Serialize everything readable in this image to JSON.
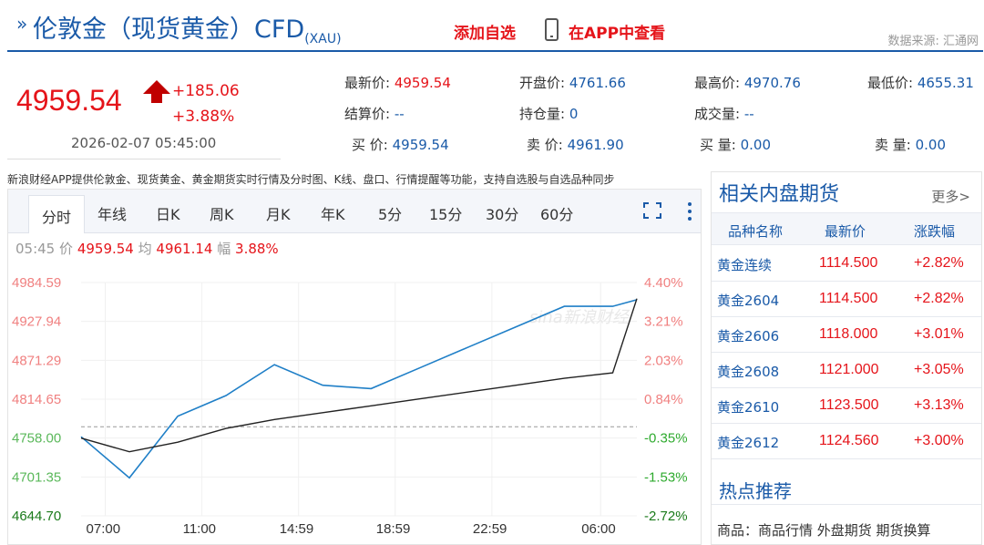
{
  "header": {
    "title": "伦敦金（现货黄金）CFD",
    "title_sub": "(XAU)",
    "add_fav": "添加自选",
    "app_view": "在APP中查看",
    "source": "数据来源: 汇通网"
  },
  "quote": {
    "price": "4959.54",
    "change": "+185.06",
    "change_pct": "+3.88%",
    "time": "2026-02-07 05:45:00",
    "fields": [
      {
        "label": "最新价:",
        "value": "4959.54",
        "red": true
      },
      {
        "label": "开盘价:",
        "value": "4761.66"
      },
      {
        "label": "最高价:",
        "value": "4970.76"
      },
      {
        "label": "最低价:",
        "value": "4655.31"
      },
      {
        "label": "结算价:",
        "value": "--"
      },
      {
        "label": "持仓量:",
        "value": "0"
      },
      {
        "label": "成交量:",
        "value": "--"
      },
      {
        "label": "买  价:",
        "value": "4959.54"
      },
      {
        "label": "卖  价:",
        "value": "4961.90"
      },
      {
        "label": "买  量:",
        "value": "0.00"
      },
      {
        "label": "卖  量:",
        "value": "0.00"
      }
    ]
  },
  "notice": "新浪财经APP提供伦敦金、现货黄金、黄金期货实时行情及分时图、K线、盘口、行情提醒等功能，支持自选股与自选品种同步",
  "tabs": [
    "分时",
    "年线",
    "日K",
    "周K",
    "月K",
    "年K",
    "5分",
    "15分",
    "30分",
    "60分"
  ],
  "chart_info": {
    "time": "05:45",
    "price_label": "价",
    "price": "4959.54",
    "avg_label": "均",
    "avg": "4961.14",
    "amp_label": "幅",
    "amp": "3.88%"
  },
  "chart_data": {
    "type": "line",
    "y_ticks": [
      "4984.59",
      "4927.94",
      "4871.29",
      "4814.65",
      "4758.00",
      "4701.35",
      "4644.70"
    ],
    "y_ticks_right": [
      "4.40%",
      "3.21%",
      "2.03%",
      "0.84%",
      "-0.35%",
      "-1.53%",
      "-2.72%"
    ],
    "x_ticks": [
      "07:00",
      "11:00",
      "14:59",
      "18:59",
      "22:59",
      "06:00"
    ],
    "ylim": [
      4644.7,
      4984.59
    ],
    "prev_close": 4774.48,
    "series": [
      {
        "color": "#1f7fc7",
        "x": [
          0,
          2,
          4,
          6,
          8,
          10,
          12,
          14,
          16,
          18,
          20,
          22,
          23
        ],
        "y": [
          4760,
          4700,
          4790,
          4820,
          4865,
          4835,
          4830,
          4860,
          4890,
          4920,
          4950,
          4950,
          4959.54
        ]
      },
      {
        "color": "#222222",
        "x": [
          0,
          2,
          4,
          6,
          8,
          10,
          12,
          14,
          16,
          18,
          20,
          22,
          23
        ],
        "y": [
          4758,
          4738,
          4752,
          4772,
          4785,
          4795,
          4805,
          4815,
          4825,
          4835,
          4845,
          4853,
          4961.14
        ]
      }
    ],
    "watermark": "sina新浪财经"
  },
  "side": {
    "title": "相关内盘期货",
    "more": "更多>",
    "headers": [
      "品种名称",
      "最新价",
      "涨跌幅"
    ],
    "rows": [
      {
        "name": "黄金连续",
        "price": "1114.500",
        "chg": "+2.82%"
      },
      {
        "name": "黄金2604",
        "price": "1114.500",
        "chg": "+2.82%"
      },
      {
        "name": "黄金2606",
        "price": "1118.000",
        "chg": "+3.01%"
      },
      {
        "name": "黄金2608",
        "price": "1121.000",
        "chg": "+3.05%"
      },
      {
        "name": "黄金2610",
        "price": "1123.500",
        "chg": "+3.13%"
      },
      {
        "name": "黄金2612",
        "price": "1124.560",
        "chg": "+3.00%"
      }
    ],
    "hot_title": "热点推荐",
    "hot_line": "商品：商品行情 外盘期货 期货换算"
  },
  "colors": {
    "brand": "#1a5aa8",
    "up": "#e5141a",
    "down": "#2eaa2e",
    "price_line": "#1f7fc7"
  }
}
